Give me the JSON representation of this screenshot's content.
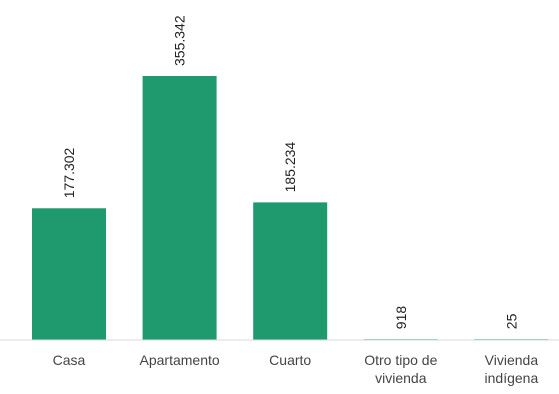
{
  "chart_data": {
    "type": "bar",
    "title": "",
    "xlabel": "",
    "ylabel": "",
    "categories": [
      [
        "Casa"
      ],
      [
        "Apartamento"
      ],
      [
        "Cuarto"
      ],
      [
        "Otro tipo de",
        "vivienda"
      ],
      [
        "Vivienda",
        "indígena"
      ]
    ],
    "values": [
      177302,
      355342,
      185234,
      918,
      25
    ],
    "value_labels": [
      "177.302",
      "355.342",
      "185.234",
      "918",
      "25"
    ],
    "ylim": [
      0,
      355342
    ],
    "grid": false,
    "legend": "none",
    "bar_color": "#1e9a6e",
    "axis_color": "#d9d9d9"
  }
}
